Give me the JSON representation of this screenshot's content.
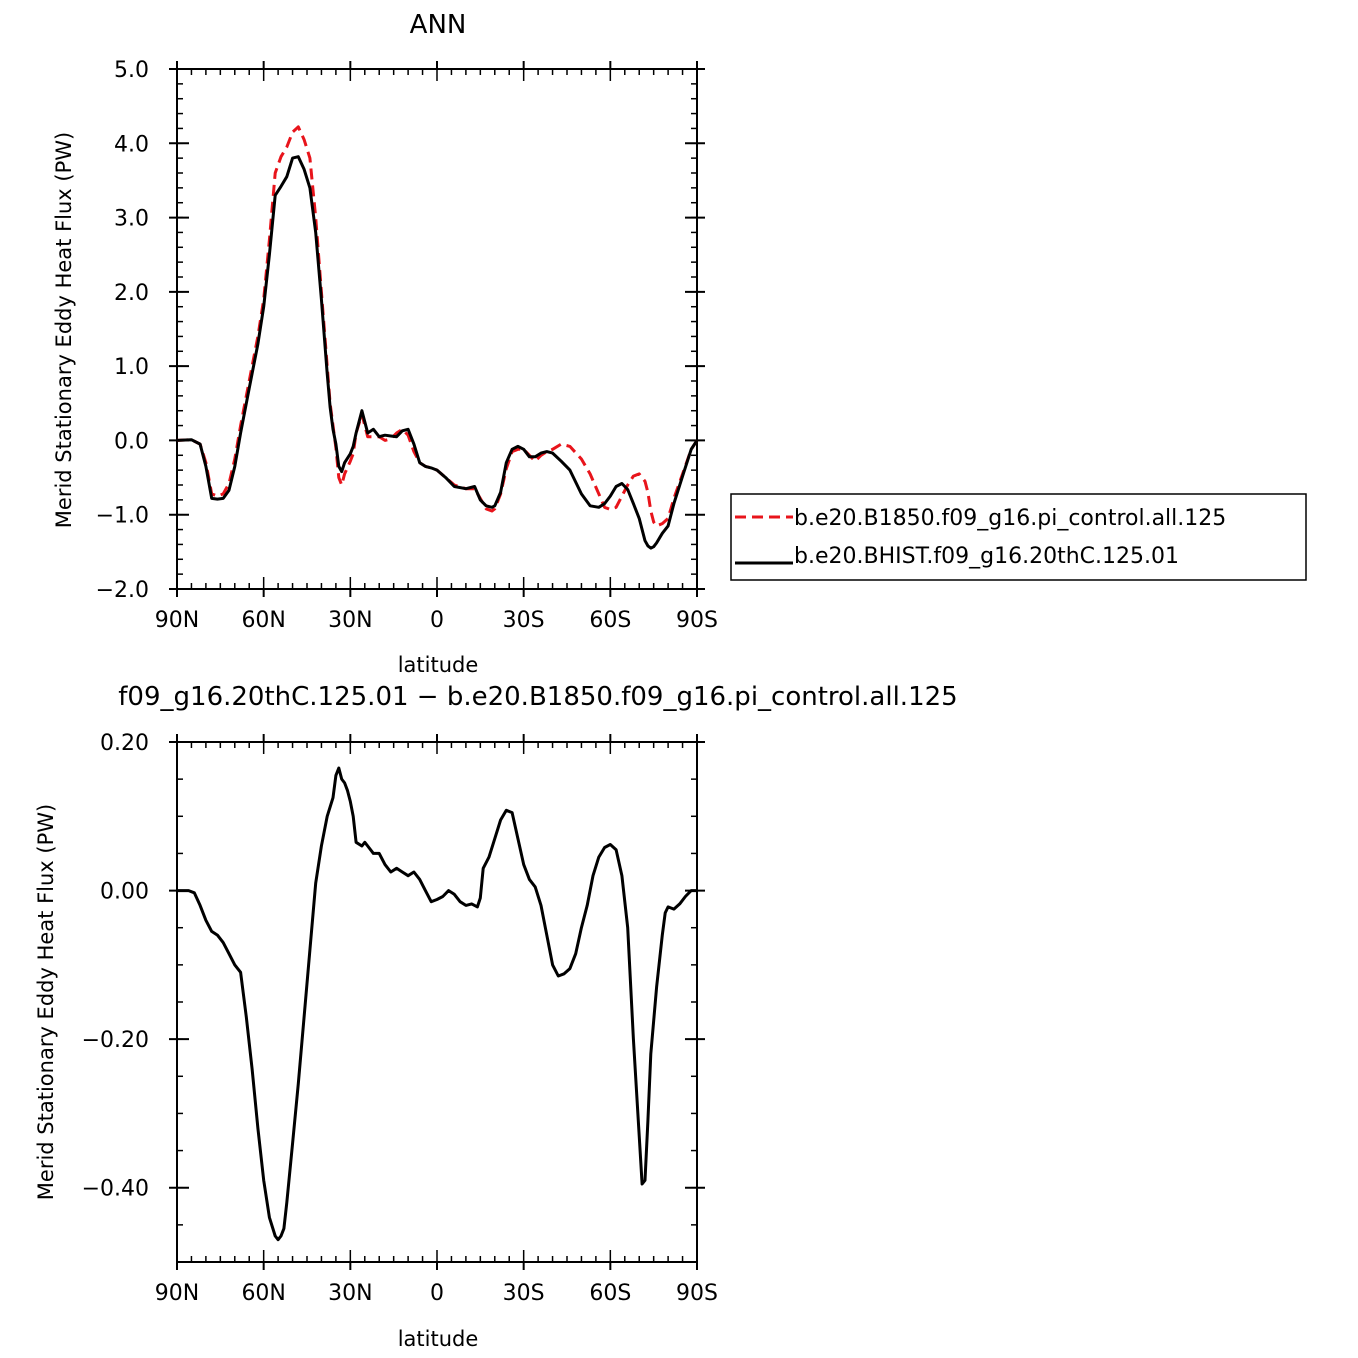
{
  "chart_data": [
    {
      "type": "line",
      "title": "ANN",
      "xlabel": "latitude",
      "ylabel": "Merid Stationary Eddy Heat Flux (PW)",
      "xlim": [
        90,
        -90
      ],
      "ylim": [
        -2.0,
        5.0
      ],
      "xticks": [
        90,
        60,
        30,
        0,
        -30,
        -60,
        -90
      ],
      "xtick_labels": [
        "90N",
        "60N",
        "30N",
        "0",
        "30S",
        "60S",
        "90S"
      ],
      "yticks": [
        -2.0,
        -1.0,
        0.0,
        1.0,
        2.0,
        3.0,
        4.0,
        5.0
      ],
      "ytick_labels": [
        "−2.0",
        "−1.0",
        "0.0",
        "1.0",
        "2.0",
        "3.0",
        "4.0",
        "5.0"
      ],
      "legend_position": "right",
      "series": [
        {
          "name": "b.e20.B1850.f09_g16.pi_control.all.125",
          "color": "#e8141b",
          "dash": "dashed",
          "x": [
            90,
            85,
            82,
            80,
            78,
            76,
            74,
            72,
            70,
            68,
            65,
            62,
            60,
            58,
            56,
            54,
            52,
            50,
            48,
            46,
            44,
            42,
            40,
            38,
            37,
            36,
            35,
            34,
            33,
            32,
            30,
            29,
            28,
            26,
            24,
            22,
            20,
            18,
            16,
            14,
            12,
            10,
            8,
            6,
            4,
            2,
            0,
            -3,
            -6,
            -10,
            -13,
            -15,
            -17,
            -19,
            -20,
            -22,
            -24,
            -26,
            -28,
            -30,
            -32,
            -34,
            -36,
            -38,
            -40,
            -43,
            -46,
            -50,
            -53,
            -56,
            -58,
            -60,
            -62,
            -64,
            -66,
            -68,
            -70,
            -72,
            -73,
            -74,
            -75,
            -76,
            -78,
            -80,
            -82,
            -85,
            -88,
            -90
          ],
          "y": [
            0.0,
            0.01,
            -0.05,
            -0.3,
            -0.72,
            -0.75,
            -0.72,
            -0.58,
            -0.25,
            0.2,
            0.8,
            1.4,
            1.9,
            2.7,
            3.6,
            3.82,
            3.95,
            4.15,
            4.22,
            4.05,
            3.8,
            3.0,
            2.0,
            1.0,
            0.5,
            0.2,
            -0.1,
            -0.5,
            -0.6,
            -0.45,
            -0.28,
            -0.18,
            0.1,
            0.35,
            0.05,
            0.05,
            0.05,
            0.0,
            0.02,
            0.1,
            0.15,
            0.07,
            -0.15,
            -0.3,
            -0.35,
            -0.37,
            -0.4,
            -0.5,
            -0.6,
            -0.65,
            -0.65,
            -0.78,
            -0.92,
            -0.95,
            -0.92,
            -0.72,
            -0.38,
            -0.15,
            -0.12,
            -0.12,
            -0.2,
            -0.28,
            -0.2,
            -0.15,
            -0.12,
            -0.05,
            -0.08,
            -0.25,
            -0.45,
            -0.72,
            -0.9,
            -0.93,
            -0.9,
            -0.75,
            -0.6,
            -0.48,
            -0.45,
            -0.55,
            -0.7,
            -0.95,
            -1.1,
            -1.15,
            -1.12,
            -1.05,
            -0.78,
            -0.45,
            -0.12,
            0.0
          ]
        },
        {
          "name": "b.e20.BHIST.f09_g16.20thC.125.01",
          "color": "#000000",
          "dash": "solid",
          "x": [
            90,
            85,
            82,
            80,
            78,
            76,
            74,
            72,
            70,
            68,
            65,
            62,
            60,
            58,
            56,
            54,
            52,
            50,
            48,
            46,
            44,
            42,
            40,
            38,
            37,
            36,
            35,
            34,
            33,
            32,
            30,
            29,
            28,
            26,
            24,
            22,
            20,
            18,
            16,
            14,
            12,
            10,
            8,
            6,
            4,
            2,
            0,
            -3,
            -6,
            -10,
            -13,
            -15,
            -17,
            -19,
            -20,
            -22,
            -24,
            -26,
            -28,
            -30,
            -32,
            -34,
            -36,
            -38,
            -40,
            -43,
            -46,
            -50,
            -53,
            -56,
            -58,
            -60,
            -62,
            -64,
            -66,
            -68,
            -70,
            -72,
            -73,
            -74,
            -75,
            -76,
            -78,
            -80,
            -82,
            -85,
            -88,
            -90
          ],
          "y": [
            0.0,
            0.01,
            -0.05,
            -0.35,
            -0.78,
            -0.79,
            -0.78,
            -0.67,
            -0.35,
            0.1,
            0.7,
            1.3,
            1.8,
            2.5,
            3.3,
            3.42,
            3.55,
            3.8,
            3.82,
            3.65,
            3.4,
            2.8,
            1.9,
            0.9,
            0.45,
            0.15,
            -0.05,
            -0.35,
            -0.42,
            -0.3,
            -0.18,
            -0.08,
            0.1,
            0.4,
            0.1,
            0.15,
            0.05,
            0.07,
            0.06,
            0.05,
            0.13,
            0.15,
            -0.05,
            -0.3,
            -0.35,
            -0.37,
            -0.4,
            -0.5,
            -0.62,
            -0.65,
            -0.62,
            -0.8,
            -0.88,
            -0.9,
            -0.88,
            -0.7,
            -0.3,
            -0.12,
            -0.08,
            -0.12,
            -0.22,
            -0.22,
            -0.17,
            -0.15,
            -0.17,
            -0.28,
            -0.4,
            -0.72,
            -0.88,
            -0.9,
            -0.85,
            -0.75,
            -0.62,
            -0.58,
            -0.66,
            -0.85,
            -1.05,
            -1.35,
            -1.42,
            -1.45,
            -1.43,
            -1.38,
            -1.25,
            -1.15,
            -0.85,
            -0.48,
            -0.12,
            0.0
          ]
        }
      ]
    },
    {
      "type": "line",
      "title": "f09_g16.20thC.125.01 − b.e20.B1850.f09_g16.pi_control.all.125",
      "xlabel": "latitude",
      "ylabel": "Merid Stationary Eddy Heat Flux (PW)",
      "xlim": [
        90,
        -90
      ],
      "ylim": [
        -0.5,
        0.2
      ],
      "xticks": [
        90,
        60,
        30,
        0,
        -30,
        -60,
        -90
      ],
      "xtick_labels": [
        "90N",
        "60N",
        "30N",
        "0",
        "30S",
        "60S",
        "90S"
      ],
      "yticks": [
        -0.4,
        -0.2,
        0.0,
        0.2
      ],
      "ytick_labels": [
        "−0.40",
        "−0.20",
        "0.00",
        "0.20"
      ],
      "series": [
        {
          "color": "#000000",
          "dash": "solid",
          "x": [
            90,
            86,
            84,
            82,
            80,
            78,
            76,
            74,
            72,
            70,
            68,
            66,
            64,
            62,
            60,
            58,
            56,
            55,
            54,
            53,
            52,
            50,
            48,
            46,
            44,
            42,
            40,
            38,
            36,
            35,
            34,
            33,
            32,
            31,
            30,
            29,
            28,
            26,
            25,
            24,
            22,
            20,
            18,
            16,
            14,
            12,
            10,
            8,
            6,
            4,
            2,
            0,
            -2,
            -4,
            -6,
            -8,
            -10,
            -12,
            -14,
            -15,
            -16,
            -18,
            -20,
            -22,
            -24,
            -26,
            -28,
            -30,
            -32,
            -34,
            -36,
            -38,
            -40,
            -42,
            -44,
            -46,
            -48,
            -50,
            -52,
            -54,
            -56,
            -58,
            -60,
            -62,
            -64,
            -66,
            -68,
            -70,
            -71,
            -72,
            -73,
            -74,
            -76,
            -78,
            -79,
            -80,
            -82,
            -84,
            -86,
            -88,
            -90
          ],
          "y": [
            0.0,
            0.0,
            -0.003,
            -0.02,
            -0.04,
            -0.055,
            -0.06,
            -0.07,
            -0.085,
            -0.1,
            -0.11,
            -0.17,
            -0.24,
            -0.32,
            -0.39,
            -0.44,
            -0.465,
            -0.47,
            -0.465,
            -0.455,
            -0.42,
            -0.34,
            -0.26,
            -0.17,
            -0.08,
            0.01,
            0.06,
            0.1,
            0.125,
            0.155,
            0.165,
            0.15,
            0.145,
            0.135,
            0.12,
            0.1,
            0.065,
            0.06,
            0.065,
            0.06,
            0.05,
            0.05,
            0.035,
            0.025,
            0.03,
            0.025,
            0.02,
            0.025,
            0.015,
            0.0,
            -0.015,
            -0.012,
            -0.008,
            0.0,
            -0.005,
            -0.015,
            -0.02,
            -0.018,
            -0.022,
            -0.01,
            0.03,
            0.045,
            0.07,
            0.095,
            0.108,
            0.105,
            0.07,
            0.035,
            0.015,
            0.005,
            -0.02,
            -0.06,
            -0.1,
            -0.115,
            -0.112,
            -0.105,
            -0.085,
            -0.05,
            -0.02,
            0.02,
            0.045,
            0.058,
            0.062,
            0.055,
            0.02,
            -0.05,
            -0.2,
            -0.33,
            -0.395,
            -0.39,
            -0.31,
            -0.22,
            -0.13,
            -0.06,
            -0.03,
            -0.022,
            -0.025,
            -0.018,
            -0.008,
            0.0,
            0.0
          ]
        }
      ]
    }
  ]
}
